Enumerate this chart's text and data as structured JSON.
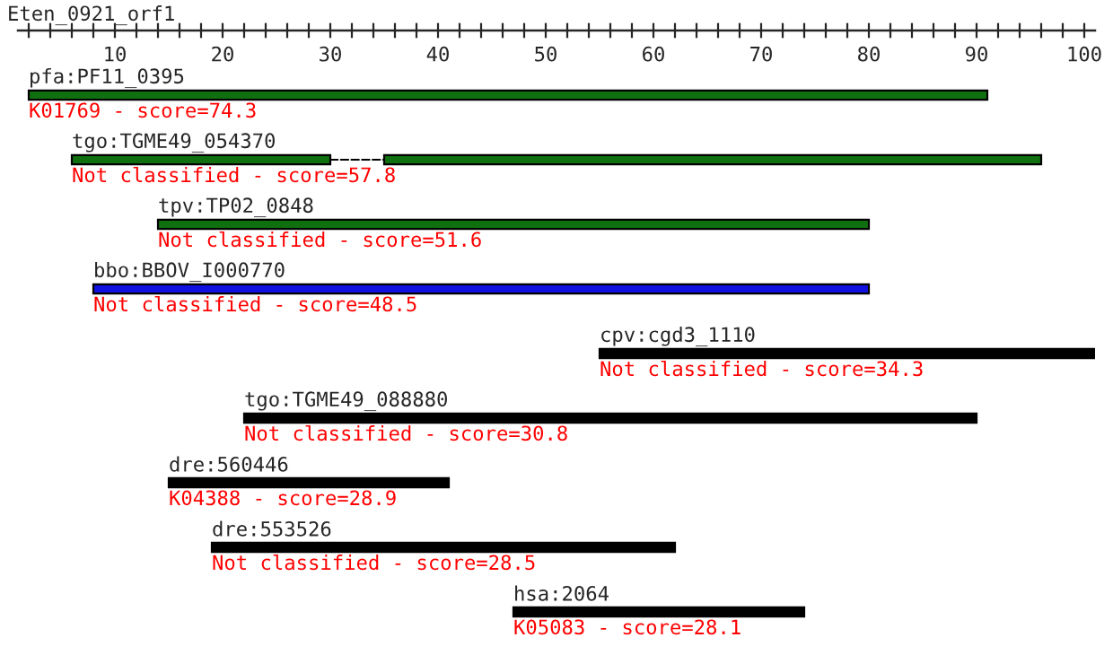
{
  "chart_data": {
    "type": "bar",
    "orientation": "horizontal",
    "title": "Eten_0921_orf1",
    "categories": [
      "pfa:PF11_0395",
      "tgo:TGME49_054370",
      "tpv:TP02_0848",
      "bbo:BBOV_I000770",
      "cpv:cgd3_1110",
      "tgo:TGME49_088880",
      "dre:560446",
      "dre:553526",
      "hsa:2064"
    ],
    "series": [
      {
        "colors": [
          "#107010",
          "#107010",
          "#107010",
          "#1010e0",
          "#000000",
          "#000000",
          "#000000",
          "#000000",
          "#000000"
        ],
        "base": [
          2,
          6,
          14,
          8,
          55,
          22,
          15,
          19,
          47
        ],
        "values": [
          89,
          24,
          66,
          72,
          46,
          68,
          26,
          43,
          27
        ]
      },
      {
        "color": "#107010",
        "base": [
          null,
          35,
          null,
          null,
          null,
          null,
          null,
          null,
          null
        ],
        "values": [
          null,
          61,
          null,
          null,
          null,
          null,
          null,
          null,
          null
        ]
      }
    ],
    "annotations": [
      "K01769 - score=74.3",
      "Not classified - score=57.8",
      "Not classified - score=51.6",
      "Not classified - score=48.5",
      "Not classified - score=34.3",
      "Not classified - score=30.8",
      "K04388 - score=28.9",
      "Not classified - score=28.5",
      "K05083 - score=28.1"
    ],
    "xlim": [
      1,
      101
    ],
    "xticks": [
      {
        "value": 2,
        "label": null
      },
      {
        "value": 4,
        "label": null
      },
      {
        "value": 6,
        "label": null
      },
      {
        "value": 8,
        "label": null
      },
      10,
      {
        "value": 12,
        "label": null
      },
      {
        "value": 14,
        "label": null
      },
      {
        "value": 16,
        "label": null
      },
      {
        "value": 18,
        "label": null
      },
      20,
      {
        "value": 22,
        "label": null
      },
      {
        "value": 24,
        "label": null
      },
      {
        "value": 26,
        "label": null
      },
      {
        "value": 28,
        "label": null
      },
      30,
      {
        "value": 32,
        "label": null
      },
      {
        "value": 34,
        "label": null
      },
      {
        "value": 36,
        "label": null
      },
      {
        "value": 38,
        "label": null
      },
      40,
      {
        "value": 42,
        "label": null
      },
      {
        "value": 44,
        "label": null
      },
      {
        "value": 46,
        "label": null
      },
      {
        "value": 48,
        "label": null
      },
      50,
      {
        "value": 52,
        "label": null
      },
      {
        "value": 54,
        "label": null
      },
      {
        "value": 56,
        "label": null
      },
      {
        "value": 58,
        "label": null
      },
      60,
      {
        "value": 62,
        "label": null
      },
      {
        "value": 64,
        "label": null
      },
      {
        "value": 66,
        "label": null
      },
      {
        "value": 68,
        "label": null
      },
      70,
      {
        "value": 72,
        "label": null
      },
      {
        "value": 74,
        "label": null
      },
      {
        "value": 76,
        "label": null
      },
      {
        "value": 78,
        "label": null
      },
      80,
      {
        "value": 82,
        "label": null
      },
      {
        "value": 84,
        "label": null
      },
      {
        "value": 86,
        "label": null
      },
      {
        "value": 88,
        "label": null
      },
      90,
      {
        "value": 92,
        "label": null
      },
      {
        "value": 94,
        "label": null
      },
      {
        "value": 96,
        "label": null
      },
      {
        "value": 98,
        "label": null
      },
      100
    ],
    "tick_labels": "x"
  }
}
